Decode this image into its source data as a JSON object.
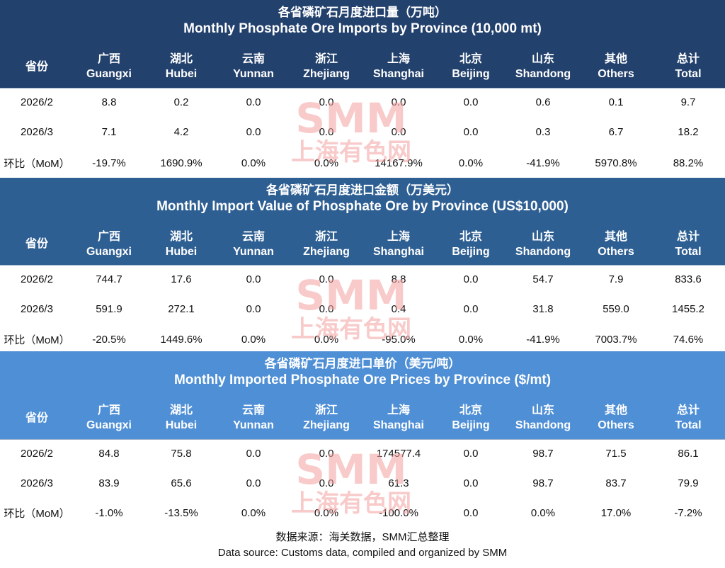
{
  "chart_data": [
    {
      "type": "table",
      "title": "各省磷矿石月度进口量（万吨）",
      "subtitle": "Monthly Phosphate Ore Imports by Province (10,000 mt)",
      "header_color": "#23416d",
      "columns": [
        {
          "cn": "省份",
          "en": ""
        },
        {
          "cn": "广西",
          "en": "Guangxi"
        },
        {
          "cn": "湖北",
          "en": "Hubei"
        },
        {
          "cn": "云南",
          "en": "Yunnan"
        },
        {
          "cn": "浙江",
          "en": "Zhejiang"
        },
        {
          "cn": "上海",
          "en": "Shanghai"
        },
        {
          "cn": "北京",
          "en": "Beijing"
        },
        {
          "cn": "山东",
          "en": "Shandong"
        },
        {
          "cn": "其他",
          "en": "Others"
        },
        {
          "cn": "总计",
          "en": "Total"
        }
      ],
      "rows": [
        [
          "2026/2",
          "8.8",
          "0.2",
          "0.0",
          "0.0",
          "0.0",
          "0.0",
          "0.6",
          "0.1",
          "9.7"
        ],
        [
          "2026/3",
          "7.1",
          "4.2",
          "0.0",
          "0.0",
          "0.0",
          "0.0",
          "0.3",
          "6.7",
          "18.2"
        ],
        [
          "环比（MoM）",
          "-19.7%",
          "1690.9%",
          "0.0%",
          "0.0%",
          "14167.9%",
          "0.0%",
          "-41.9%",
          "5970.8%",
          "88.2%"
        ]
      ]
    },
    {
      "type": "table",
      "title": "各省磷矿石月度进口金额（万美元）",
      "subtitle": "Monthly Import Value of Phosphate Ore by Province (US$10,000)",
      "header_color": "#2e5f93",
      "columns": [
        {
          "cn": "省份",
          "en": ""
        },
        {
          "cn": "广西",
          "en": "Guangxi"
        },
        {
          "cn": "湖北",
          "en": "Hubei"
        },
        {
          "cn": "云南",
          "en": "Yunnan"
        },
        {
          "cn": "浙江",
          "en": "Zhejiang"
        },
        {
          "cn": "上海",
          "en": "Shanghai"
        },
        {
          "cn": "北京",
          "en": "Beijing"
        },
        {
          "cn": "山东",
          "en": "Shandong"
        },
        {
          "cn": "其他",
          "en": "Others"
        },
        {
          "cn": "总计",
          "en": "Total"
        }
      ],
      "rows": [
        [
          "2026/2",
          "744.7",
          "17.6",
          "0.0",
          "0.0",
          "8.8",
          "0.0",
          "54.7",
          "7.9",
          "833.6"
        ],
        [
          "2026/3",
          "591.9",
          "272.1",
          "0.0",
          "0.0",
          "0.4",
          "0.0",
          "31.8",
          "559.0",
          "1455.2"
        ],
        [
          "环比（MoM）",
          "-20.5%",
          "1449.6%",
          "0.0%",
          "0.0%",
          "-95.0%",
          "0.0%",
          "-41.9%",
          "7003.7%",
          "74.6%"
        ]
      ]
    },
    {
      "type": "table",
      "title": "各省磷矿石月度进口单价（美元/吨）",
      "subtitle": "Monthly Imported Phosphate Ore Prices by Province ($/mt)",
      "header_color": "#4f8fd6",
      "columns": [
        {
          "cn": "省份",
          "en": ""
        },
        {
          "cn": "广西",
          "en": "Guangxi"
        },
        {
          "cn": "湖北",
          "en": "Hubei"
        },
        {
          "cn": "云南",
          "en": "Yunnan"
        },
        {
          "cn": "浙江",
          "en": "Zhejiang"
        },
        {
          "cn": "上海",
          "en": "Shanghai"
        },
        {
          "cn": "北京",
          "en": "Beijing"
        },
        {
          "cn": "山东",
          "en": "Shandong"
        },
        {
          "cn": "其他",
          "en": "Others"
        },
        {
          "cn": "总计",
          "en": "Total"
        }
      ],
      "rows": [
        [
          "2026/2",
          "84.8",
          "75.8",
          "0.0",
          "0.0",
          "174577.4",
          "0.0",
          "98.7",
          "71.5",
          "86.1"
        ],
        [
          "2026/3",
          "83.9",
          "65.6",
          "0.0",
          "0.0",
          "61.3",
          "0.0",
          "98.7",
          "83.7",
          "79.9"
        ],
        [
          "环比（MoM）",
          "-1.0%",
          "-13.5%",
          "0.0%",
          "0.0%",
          "-100.0%",
          "0.0",
          "0.0%",
          "17.0%",
          "-7.2%"
        ]
      ]
    }
  ],
  "watermark": {
    "brand": "SMM",
    "name": "上海有色网",
    "color": "#f4a0a0"
  },
  "footer": {
    "cn": "数据来源：海关数据，SMM汇总整理",
    "en": "Data source: Customs data, compiled and organized by SMM"
  }
}
